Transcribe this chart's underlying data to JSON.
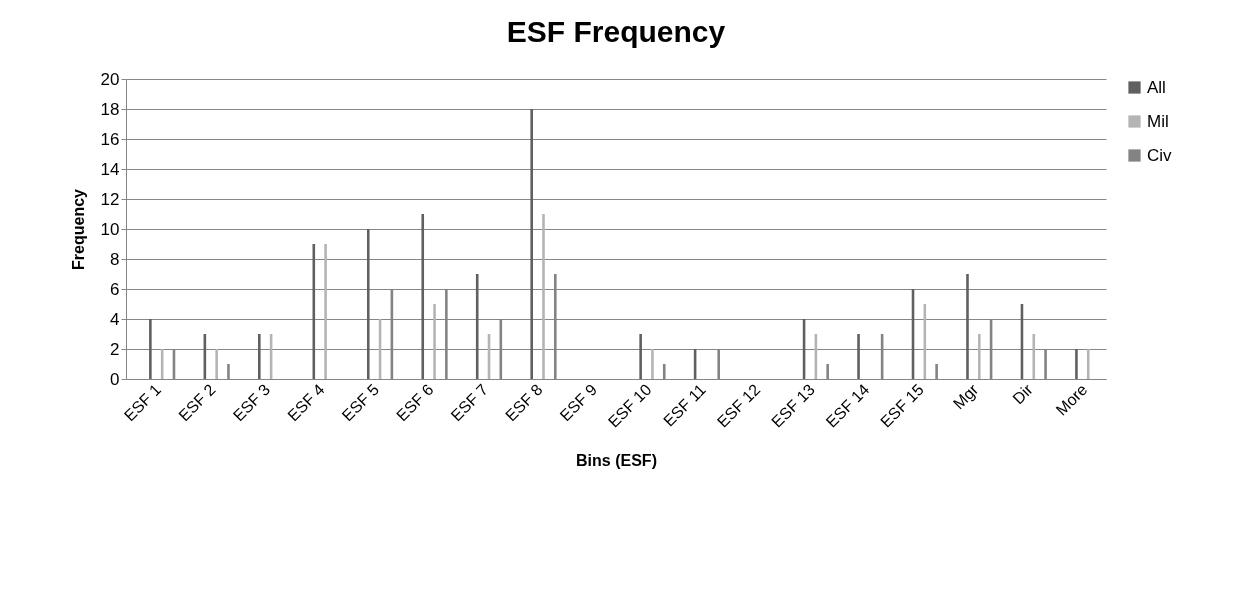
{
  "chart_data": {
    "type": "bar",
    "title": "ESF Frequency",
    "xlabel": "Bins (ESF)",
    "ylabel": "Frequency",
    "categories": [
      "ESF 1",
      "ESF 2",
      "ESF 3",
      "ESF 4",
      "ESF 5",
      "ESF 6",
      "ESF 7",
      "ESF 8",
      "ESF 9",
      "ESF 10",
      "ESF 11",
      "ESF 12",
      "ESF 13",
      "ESF 14",
      "ESF 15",
      "Mgr",
      "Dir",
      "More"
    ],
    "series": [
      {
        "name": "All",
        "color": "#606060",
        "values": [
          4,
          3,
          3,
          9,
          10,
          11,
          7,
          18,
          0,
          3,
          2,
          0,
          4,
          3,
          6,
          7,
          5,
          2
        ]
      },
      {
        "name": "Mil",
        "color": "#b4b4b4",
        "values": [
          2,
          2,
          3,
          9,
          4,
          5,
          3,
          11,
          0,
          2,
          0,
          0,
          3,
          0,
          5,
          3,
          3,
          2
        ]
      },
      {
        "name": "Civ",
        "color": "#838383",
        "values": [
          2,
          1,
          0,
          0,
          6,
          6,
          4,
          7,
          0,
          1,
          2,
          0,
          1,
          3,
          1,
          4,
          2,
          0
        ]
      }
    ],
    "ylim": [
      0,
      20
    ],
    "yticks": [
      0,
      2,
      4,
      6,
      8,
      10,
      12,
      14,
      16,
      18,
      20
    ],
    "grid": "y",
    "legend": "right"
  }
}
